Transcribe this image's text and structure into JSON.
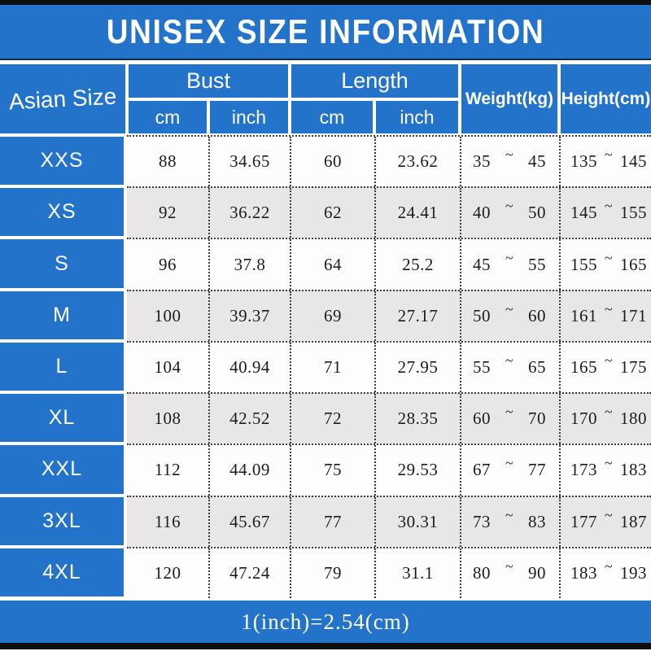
{
  "title": "UNISEX SIZE INFORMATION",
  "footer_note": "1(inch)=2.54(cm)",
  "colors": {
    "blue": "#2273c9",
    "row_white": "#fdfdfd",
    "row_gray": "#e8e6e6",
    "black_strip": "#0e0e0e",
    "text": "#1c1c1c",
    "header_text": "#ffffff"
  },
  "table": {
    "corner_header": "Asian Size",
    "bust_label": "Bust",
    "length_label": "Length",
    "weight_label": "Weight(kg)",
    "height_label": "Height(cm)",
    "sub_headers": [
      "cm",
      "inch",
      "cm",
      "inch"
    ],
    "range_separator": "~",
    "rows": [
      {
        "size": "XXS",
        "bust_cm": "88",
        "bust_inch": "34.65",
        "length_cm": "60",
        "length_inch": "23.62",
        "weight_min": "35",
        "weight_max": "45",
        "height_min": "135",
        "height_max": "145"
      },
      {
        "size": "XS",
        "bust_cm": "92",
        "bust_inch": "36.22",
        "length_cm": "62",
        "length_inch": "24.41",
        "weight_min": "40",
        "weight_max": "50",
        "height_min": "145",
        "height_max": "155"
      },
      {
        "size": "S",
        "bust_cm": "96",
        "bust_inch": "37.8",
        "length_cm": "64",
        "length_inch": "25.2",
        "weight_min": "45",
        "weight_max": "55",
        "height_min": "155",
        "height_max": "165"
      },
      {
        "size": "M",
        "bust_cm": "100",
        "bust_inch": "39.37",
        "length_cm": "69",
        "length_inch": "27.17",
        "weight_min": "50",
        "weight_max": "60",
        "height_min": "161",
        "height_max": "171"
      },
      {
        "size": "L",
        "bust_cm": "104",
        "bust_inch": "40.94",
        "length_cm": "71",
        "length_inch": "27.95",
        "weight_min": "55",
        "weight_max": "65",
        "height_min": "165",
        "height_max": "175"
      },
      {
        "size": "XL",
        "bust_cm": "108",
        "bust_inch": "42.52",
        "length_cm": "72",
        "length_inch": "28.35",
        "weight_min": "60",
        "weight_max": "70",
        "height_min": "170",
        "height_max": "180"
      },
      {
        "size": "XXL",
        "bust_cm": "112",
        "bust_inch": "44.09",
        "length_cm": "75",
        "length_inch": "29.53",
        "weight_min": "67",
        "weight_max": "77",
        "height_min": "173",
        "height_max": "183"
      },
      {
        "size": "3XL",
        "bust_cm": "116",
        "bust_inch": "45.67",
        "length_cm": "77",
        "length_inch": "30.31",
        "weight_min": "73",
        "weight_max": "83",
        "height_min": "177",
        "height_max": "187"
      },
      {
        "size": "4XL",
        "bust_cm": "120",
        "bust_inch": "47.24",
        "length_cm": "79",
        "length_inch": "31.1",
        "weight_min": "80",
        "weight_max": "90",
        "height_min": "183",
        "height_max": "193"
      }
    ]
  },
  "chart_data": {
    "type": "table",
    "title": "UNISEX SIZE INFORMATION",
    "columns": [
      "Asian Size",
      "Bust cm",
      "Bust inch",
      "Length cm",
      "Length inch",
      "Weight(kg)",
      "Height(cm)"
    ],
    "rows": [
      [
        "XXS",
        88,
        34.65,
        60,
        23.62,
        "35~45",
        "135~145"
      ],
      [
        "XS",
        92,
        36.22,
        62,
        24.41,
        "40~50",
        "145~155"
      ],
      [
        "S",
        96,
        37.8,
        64,
        25.2,
        "45~55",
        "155~165"
      ],
      [
        "M",
        100,
        39.37,
        69,
        27.17,
        "50~60",
        "161~171"
      ],
      [
        "L",
        104,
        40.94,
        71,
        27.95,
        "55~65",
        "165~175"
      ],
      [
        "XL",
        108,
        42.52,
        72,
        28.35,
        "60~70",
        "170~180"
      ],
      [
        "XXL",
        112,
        44.09,
        75,
        29.53,
        "67~77",
        "173~183"
      ],
      [
        "3XL",
        116,
        45.67,
        77,
        30.31,
        "73~83",
        "177~187"
      ],
      [
        "4XL",
        120,
        47.24,
        79,
        31.1,
        "80~90",
        "183~193"
      ]
    ],
    "footnote": "1(inch)=2.54(cm)"
  }
}
